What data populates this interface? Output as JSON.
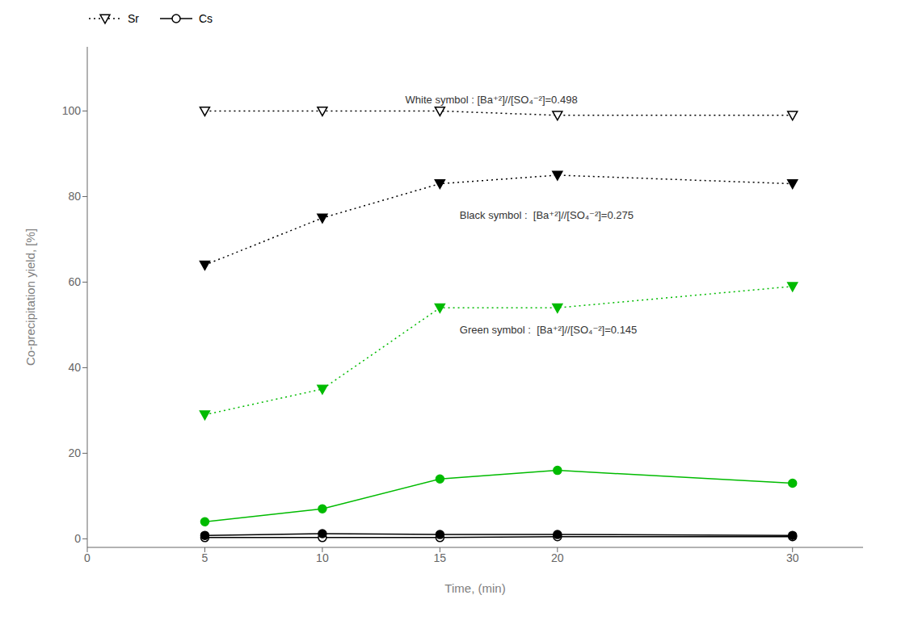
{
  "chart_data": {
    "type": "line",
    "x": [
      5,
      10,
      15,
      20,
      30
    ],
    "series": [
      {
        "name": "Sr",
        "color": "#000000",
        "marker": "open_triangle_down",
        "line_style": "dotted",
        "values": [
          100,
          100,
          100,
          99,
          99
        ]
      },
      {
        "name": "Sr",
        "color": "#000000",
        "marker": "triangle_down",
        "line_style": "dotted",
        "values": [
          64,
          75,
          83,
          85,
          83
        ]
      },
      {
        "name": "Sr",
        "color": "#00bb00",
        "marker": "triangle_down",
        "line_style": "dotted",
        "values": [
          29,
          35,
          54,
          54,
          59
        ]
      },
      {
        "name": "Cs",
        "color": "#000000",
        "marker": "open_circle",
        "line_style": "solid",
        "values": [
          0.3,
          0.3,
          0.3,
          0.5,
          0.5
        ]
      },
      {
        "name": "Cs",
        "color": "#000000",
        "marker": "circle",
        "line_style": "solid",
        "values": [
          0.8,
          1.2,
          1.0,
          1.0,
          0.8
        ]
      },
      {
        "name": "Cs",
        "color": "#00bb00",
        "marker": "circle",
        "line_style": "solid",
        "values": [
          4,
          7,
          14,
          16,
          13
        ]
      }
    ],
    "xlabel": "Time, (min)",
    "ylabel": "Co-precipitation yield, [%]",
    "xlim": [
      0,
      33
    ],
    "ylim": [
      -2,
      115
    ],
    "xticks": [
      0,
      5,
      10,
      15,
      20,
      30
    ],
    "yticks": [
      0,
      20,
      40,
      60,
      80,
      100
    ],
    "annotations": [
      "White symbol : [Ba⁺²]//[SO₄⁻²]=0.498",
      "Black symbol :  [Ba⁺²]//[SO₄⁻²]=0.275",
      "Green symbol :  [Ba⁺²]//[SO₄⁻²]=0.145"
    ],
    "legend": "upper left",
    "grid": false
  }
}
